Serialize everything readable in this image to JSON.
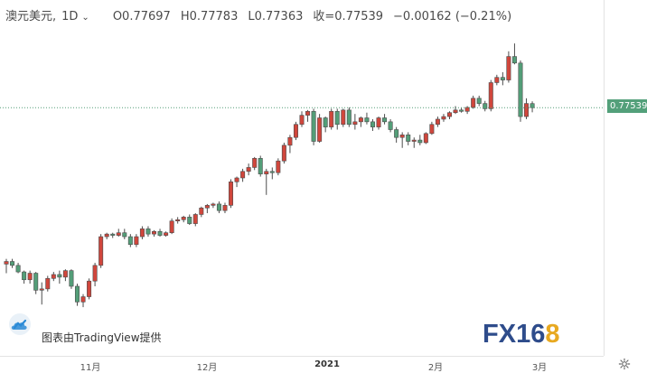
{
  "legend": {
    "symbol": "澳元美元,",
    "timeframe": "1D",
    "open": "O0.77697",
    "high": "H0.77783",
    "low": "L0.77363",
    "close": "收=0.77539",
    "change": "−0.00162 (−0.21%)"
  },
  "price_tag": "0.77539",
  "time_axis": [
    "11月",
    "12月",
    "2021",
    "2月",
    "3月"
  ],
  "watermark": {
    "text": "图表由TradingView提供"
  },
  "brand": {
    "fx": "FX",
    "num": "16",
    "eight": "8"
  },
  "icons": {
    "settings": "gear-icon",
    "tradingview": "cloud-logo-icon",
    "timeframe_menu": "chevron-down-icon"
  },
  "colors": {
    "up": "#d0463c",
    "down": "#539e78",
    "price_line": "#539e78"
  },
  "chart_data": {
    "type": "candlestick",
    "instrument": "澳元美元",
    "interval": "1D",
    "last_close": 0.77539,
    "ohlc": [
      [
        0.7155,
        0.7175,
        0.712,
        0.7165
      ],
      [
        0.7165,
        0.7175,
        0.714,
        0.715
      ],
      [
        0.715,
        0.716,
        0.712,
        0.7125
      ],
      [
        0.7125,
        0.713,
        0.708,
        0.7095
      ],
      [
        0.7095,
        0.713,
        0.708,
        0.712
      ],
      [
        0.712,
        0.7125,
        0.704,
        0.7055
      ],
      [
        0.7055,
        0.7085,
        0.7,
        0.706
      ],
      [
        0.706,
        0.711,
        0.705,
        0.71
      ],
      [
        0.71,
        0.7125,
        0.709,
        0.7115
      ],
      [
        0.7115,
        0.713,
        0.708,
        0.7105
      ],
      [
        0.7105,
        0.7135,
        0.709,
        0.713
      ],
      [
        0.713,
        0.7135,
        0.706,
        0.707
      ],
      [
        0.707,
        0.708,
        0.6995,
        0.701
      ],
      [
        0.701,
        0.704,
        0.699,
        0.703
      ],
      [
        0.703,
        0.71,
        0.702,
        0.709
      ],
      [
        0.709,
        0.716,
        0.707,
        0.715
      ],
      [
        0.715,
        0.727,
        0.714,
        0.726
      ],
      [
        0.726,
        0.7275,
        0.725,
        0.727
      ],
      [
        0.727,
        0.7275,
        0.7255,
        0.7265
      ],
      [
        0.7265,
        0.729,
        0.726,
        0.7275
      ],
      [
        0.7275,
        0.729,
        0.725,
        0.726
      ],
      [
        0.726,
        0.727,
        0.722,
        0.723
      ],
      [
        0.723,
        0.727,
        0.722,
        0.726
      ],
      [
        0.726,
        0.73,
        0.725,
        0.729
      ],
      [
        0.729,
        0.73,
        0.726,
        0.727
      ],
      [
        0.727,
        0.7285,
        0.726,
        0.728
      ],
      [
        0.728,
        0.729,
        0.726,
        0.7265
      ],
      [
        0.7265,
        0.728,
        0.726,
        0.7275
      ],
      [
        0.7275,
        0.733,
        0.727,
        0.732
      ],
      [
        0.732,
        0.7335,
        0.731,
        0.7325
      ],
      [
        0.7325,
        0.734,
        0.7315,
        0.7335
      ],
      [
        0.7335,
        0.7345,
        0.7305,
        0.731
      ],
      [
        0.731,
        0.735,
        0.73,
        0.7345
      ],
      [
        0.7345,
        0.7375,
        0.7335,
        0.737
      ],
      [
        0.737,
        0.7385,
        0.735,
        0.738
      ],
      [
        0.738,
        0.739,
        0.737,
        0.7385
      ],
      [
        0.7385,
        0.7395,
        0.735,
        0.736
      ],
      [
        0.736,
        0.739,
        0.735,
        0.738
      ],
      [
        0.738,
        0.748,
        0.737,
        0.747
      ],
      [
        0.747,
        0.749,
        0.745,
        0.7485
      ],
      [
        0.7485,
        0.752,
        0.747,
        0.751
      ],
      [
        0.751,
        0.754,
        0.7495,
        0.7525
      ],
      [
        0.7525,
        0.7565,
        0.7515,
        0.756
      ],
      [
        0.756,
        0.757,
        0.749,
        0.75
      ],
      [
        0.75,
        0.752,
        0.742,
        0.751
      ],
      [
        0.751,
        0.7525,
        0.748,
        0.7505
      ],
      [
        0.7505,
        0.756,
        0.7495,
        0.755
      ],
      [
        0.755,
        0.762,
        0.754,
        0.761
      ],
      [
        0.761,
        0.765,
        0.758,
        0.764
      ],
      [
        0.764,
        0.77,
        0.763,
        0.769
      ],
      [
        0.769,
        0.774,
        0.768,
        0.7725
      ],
      [
        0.7725,
        0.7745,
        0.77,
        0.774
      ],
      [
        0.774,
        0.775,
        0.761,
        0.7625
      ],
      [
        0.7625,
        0.773,
        0.762,
        0.7715
      ],
      [
        0.7715,
        0.772,
        0.766,
        0.768
      ],
      [
        0.768,
        0.775,
        0.767,
        0.774
      ],
      [
        0.774,
        0.775,
        0.767,
        0.769
      ],
      [
        0.769,
        0.775,
        0.768,
        0.7745
      ],
      [
        0.7745,
        0.7755,
        0.768,
        0.769
      ],
      [
        0.769,
        0.773,
        0.767,
        0.77
      ],
      [
        0.77,
        0.772,
        0.768,
        0.7715
      ],
      [
        0.7715,
        0.7735,
        0.769,
        0.77
      ],
      [
        0.77,
        0.771,
        0.7665,
        0.768
      ],
      [
        0.768,
        0.772,
        0.767,
        0.7715
      ],
      [
        0.7715,
        0.773,
        0.769,
        0.77
      ],
      [
        0.77,
        0.771,
        0.766,
        0.767
      ],
      [
        0.767,
        0.768,
        0.762,
        0.764
      ],
      [
        0.764,
        0.766,
        0.76,
        0.765
      ],
      [
        0.765,
        0.766,
        0.761,
        0.7625
      ],
      [
        0.7625,
        0.764,
        0.76,
        0.763
      ],
      [
        0.763,
        0.765,
        0.761,
        0.762
      ],
      [
        0.762,
        0.766,
        0.7615,
        0.7655
      ],
      [
        0.7655,
        0.77,
        0.765,
        0.769
      ],
      [
        0.769,
        0.772,
        0.768,
        0.771
      ],
      [
        0.771,
        0.773,
        0.77,
        0.772
      ],
      [
        0.772,
        0.774,
        0.771,
        0.7735
      ],
      [
        0.7735,
        0.776,
        0.773,
        0.7745
      ],
      [
        0.7745,
        0.7755,
        0.7735,
        0.774
      ],
      [
        0.774,
        0.776,
        0.773,
        0.7755
      ],
      [
        0.7755,
        0.78,
        0.775,
        0.779
      ],
      [
        0.779,
        0.78,
        0.776,
        0.777
      ],
      [
        0.777,
        0.778,
        0.774,
        0.775
      ],
      [
        0.775,
        0.786,
        0.774,
        0.785
      ],
      [
        0.785,
        0.788,
        0.784,
        0.787
      ],
      [
        0.787,
        0.789,
        0.784,
        0.786
      ],
      [
        0.786,
        0.797,
        0.785,
        0.795
      ],
      [
        0.795,
        0.8,
        0.792,
        0.7925
      ],
      [
        0.7925,
        0.7935,
        0.77,
        0.772
      ],
      [
        0.772,
        0.779,
        0.771,
        0.777
      ],
      [
        0.77697,
        0.77783,
        0.77363,
        0.77539
      ]
    ]
  }
}
